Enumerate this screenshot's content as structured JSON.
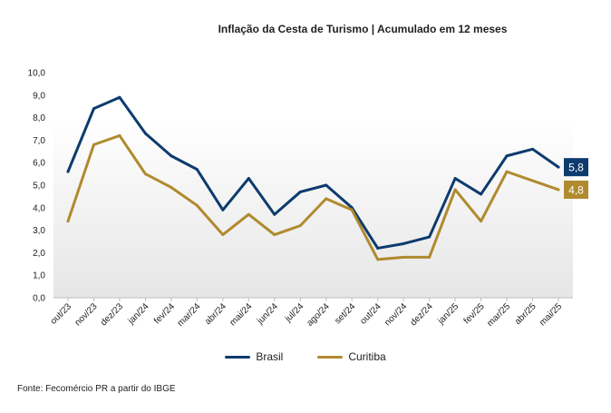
{
  "chart_data": {
    "type": "line",
    "title": "Inflação da Cesta de Turismo | Acumulado em 12 meses",
    "xlabel": "",
    "ylabel": "",
    "categories": [
      "out/23",
      "nov/23",
      "dez/23",
      "jan/24",
      "fev/24",
      "mar/24",
      "abr/24",
      "mai/24",
      "jun/24",
      "jul/24",
      "ago/24",
      "set/24",
      "out/24",
      "nov/24",
      "dez/24",
      "jan/25",
      "fev/25",
      "mar/25",
      "abr/25",
      "mai/25"
    ],
    "ylim": [
      0,
      10
    ],
    "yticks": [
      "0,0",
      "1,0",
      "2,0",
      "3,0",
      "4,0",
      "5,0",
      "6,0",
      "7,0",
      "8,0",
      "9,0",
      "10,0"
    ],
    "grid": false,
    "legend_position": "bottom",
    "series": [
      {
        "name": "Brasil",
        "color": "#0d3b6e",
        "values": [
          5.6,
          8.4,
          8.9,
          7.3,
          6.3,
          5.7,
          3.9,
          5.3,
          3.7,
          4.7,
          5.0,
          4.0,
          2.2,
          2.4,
          2.7,
          5.3,
          4.6,
          6.3,
          6.6,
          5.8
        ],
        "end_label": "5,8"
      },
      {
        "name": "Curitiba",
        "color": "#b08a2e",
        "values": [
          3.4,
          6.8,
          7.2,
          5.5,
          4.9,
          4.1,
          2.8,
          3.7,
          2.8,
          3.2,
          4.4,
          3.9,
          1.7,
          1.8,
          1.8,
          4.8,
          3.4,
          5.6,
          5.2,
          4.8
        ],
        "end_label": "4,8"
      }
    ]
  },
  "source": "Fonte: Fecomércio PR a partir do IBGE"
}
